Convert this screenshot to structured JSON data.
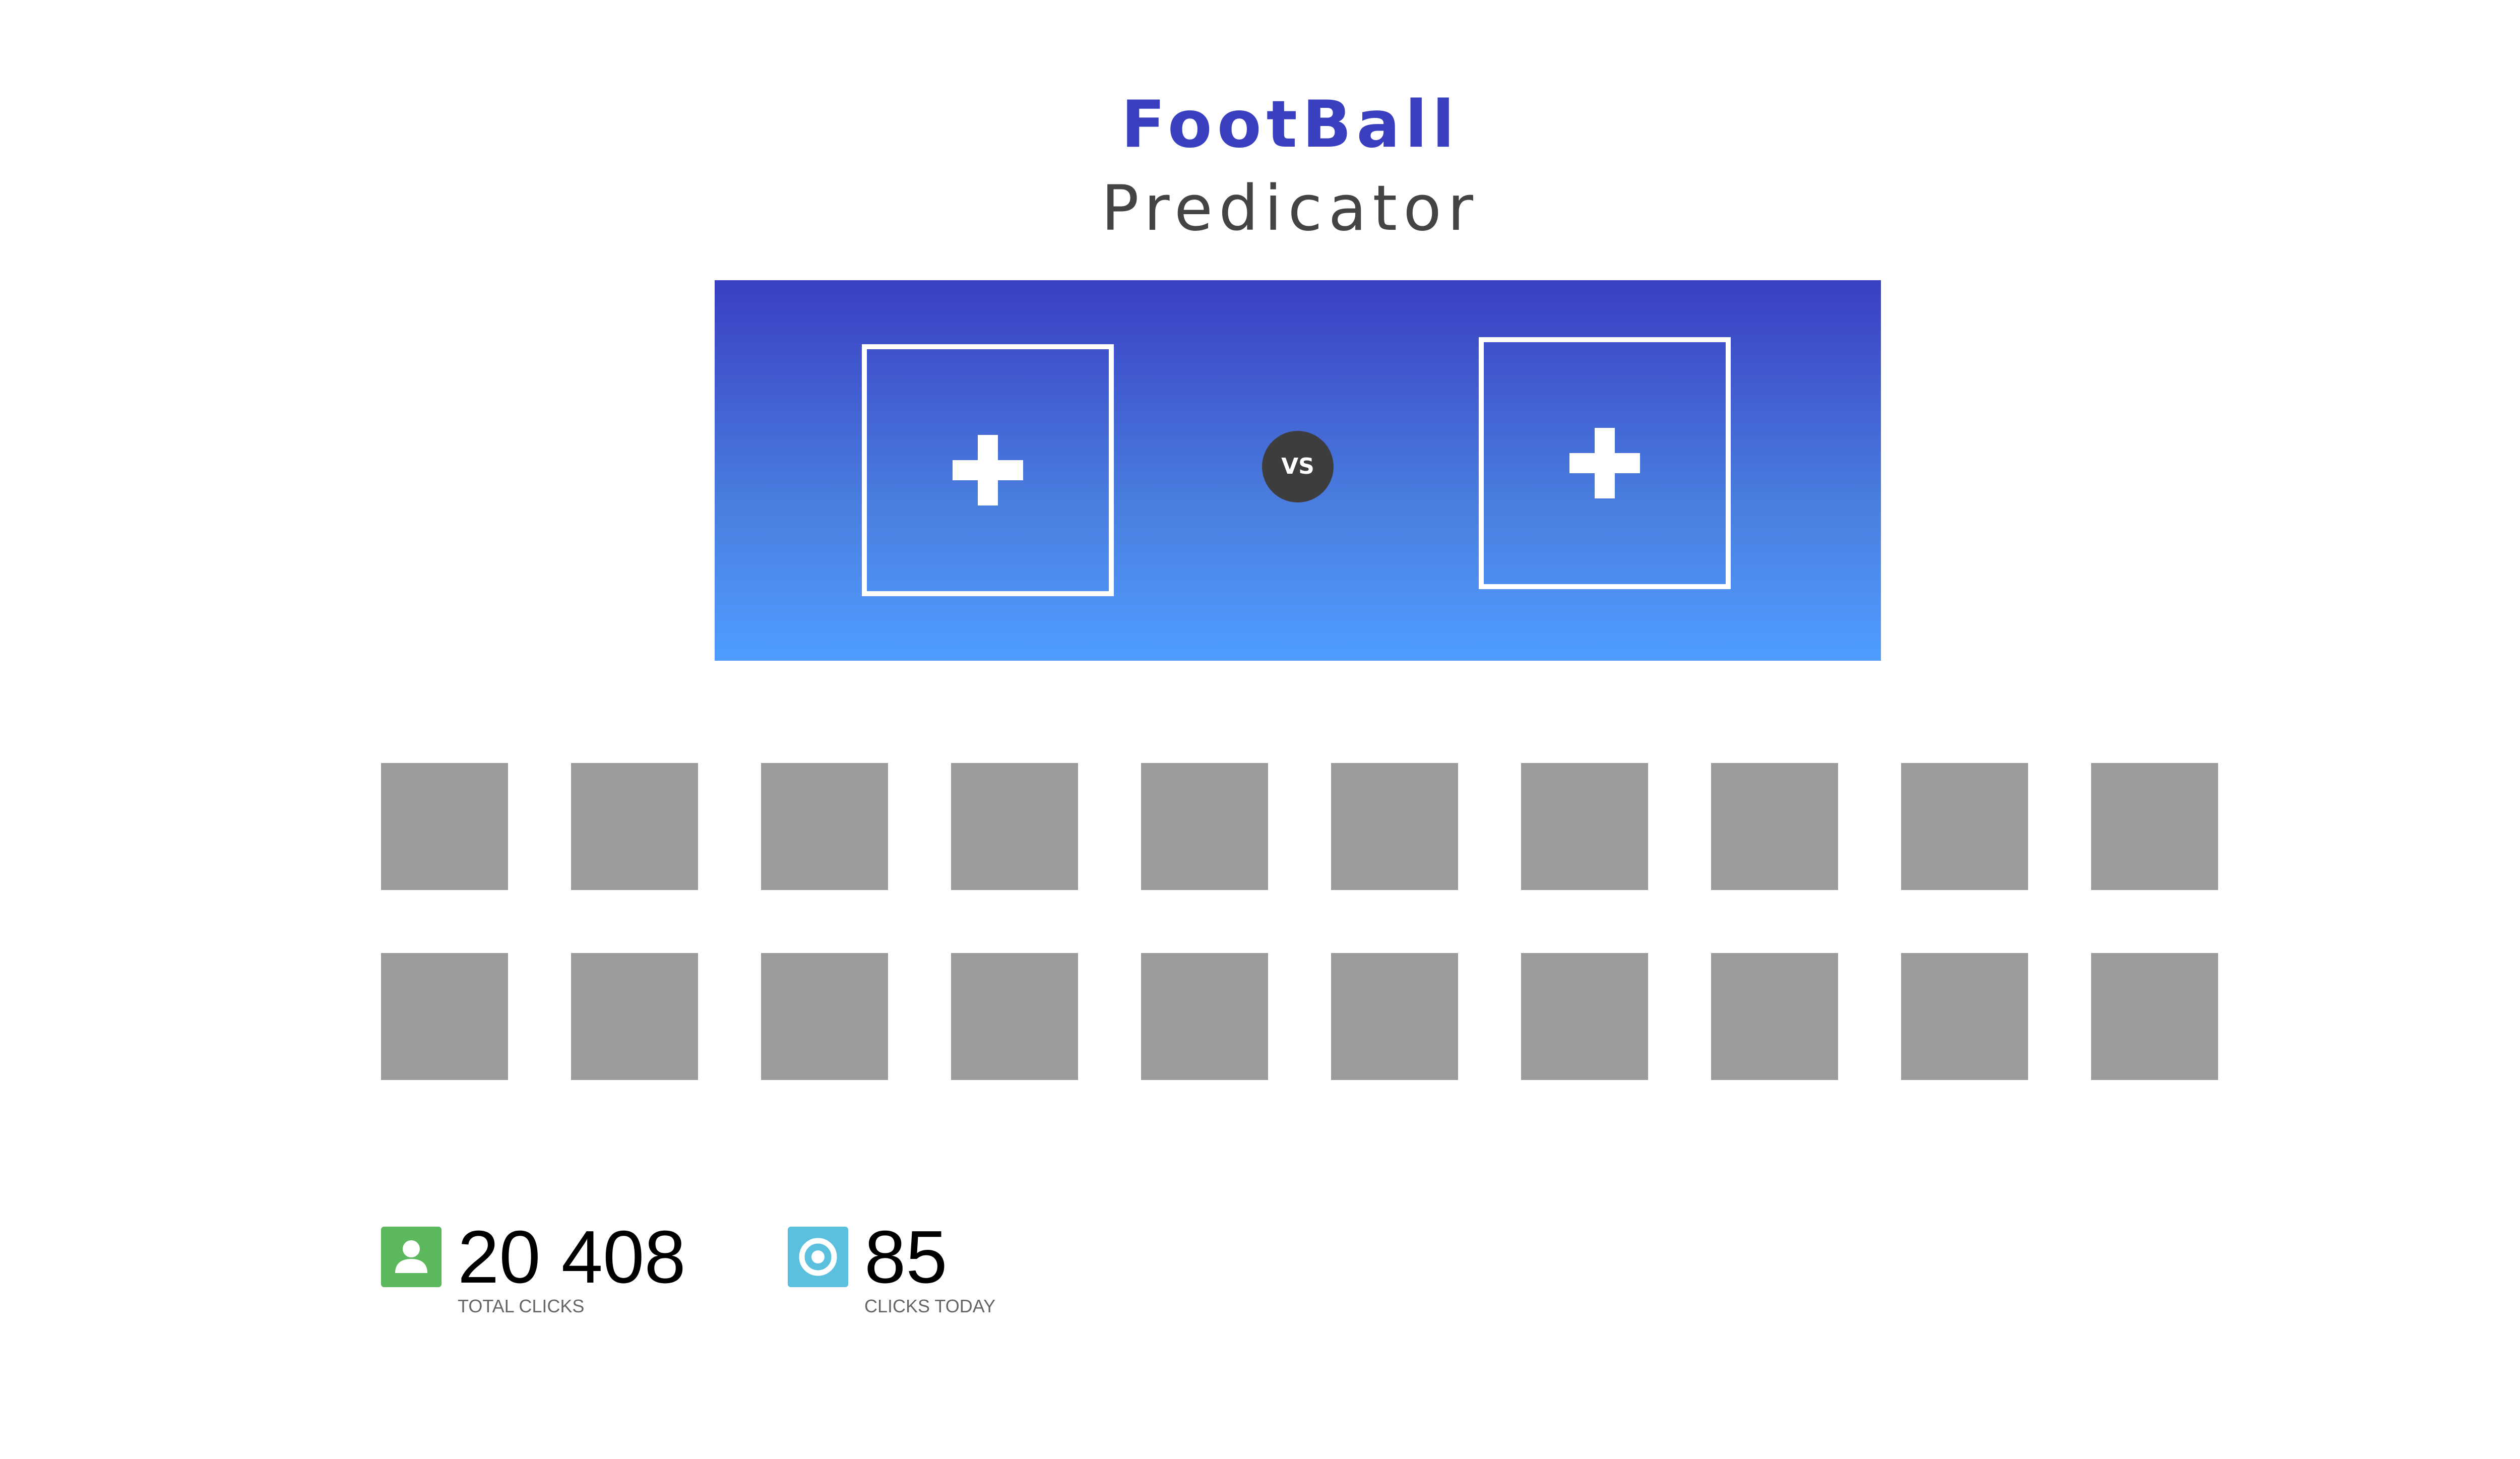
{
  "header": {
    "title": "FootBall",
    "subtitle": "Predicator"
  },
  "matchup": {
    "vs_label": "VS",
    "left_slot_icon": "plus-icon",
    "right_slot_icon": "plus-icon"
  },
  "stats": {
    "total": {
      "value": "20 408",
      "label": "TOTAL CLICKS",
      "icon": "user-icon",
      "color": "#5cb85c"
    },
    "today": {
      "value": "85",
      "label": "CLICKS TODAY",
      "icon": "target-icon",
      "color": "#5bc0de"
    }
  },
  "colors": {
    "title": "#3a3fc0",
    "banner_top": "#3a3fc2",
    "banner_bottom": "#4f9dff",
    "tile": "#9b9b9b",
    "vs_badge": "#3d3d3d"
  }
}
